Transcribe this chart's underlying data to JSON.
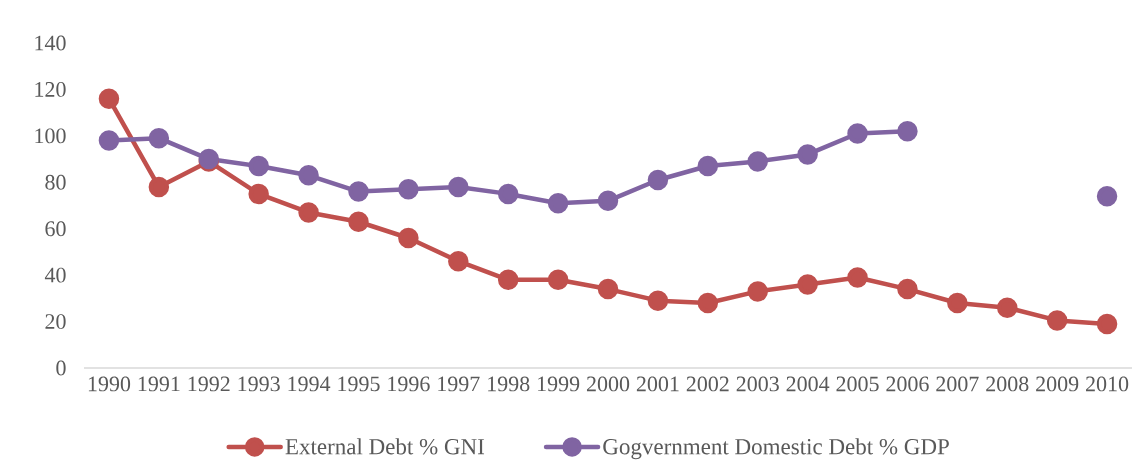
{
  "chart_data": {
    "type": "line",
    "categories": [
      "1990",
      "1991",
      "1992",
      "1993",
      "1994",
      "1995",
      "1996",
      "1997",
      "1998",
      "1999",
      "2000",
      "2001",
      "2002",
      "2003",
      "2004",
      "2005",
      "2006",
      "2007",
      "2008",
      "2009",
      "2010"
    ],
    "series": [
      {
        "name": "External Debt % GNI",
        "color": "#c0504d",
        "values": [
          116,
          78,
          89,
          75,
          67,
          63,
          56,
          46,
          38,
          38,
          34,
          29,
          28,
          33,
          36,
          39,
          34,
          28,
          26,
          20.5,
          19
        ]
      },
      {
        "name": "Gogvernment Domestic Debt % GDP",
        "color": "#8064a2",
        "values": [
          98,
          99,
          90,
          87,
          83,
          76,
          77,
          78,
          75,
          71,
          72,
          81,
          87,
          89,
          92,
          101,
          102,
          null,
          null,
          null,
          74
        ]
      }
    ],
    "ylim": [
      0,
      140
    ],
    "yticks": [
      0,
      20,
      40,
      60,
      80,
      100,
      120,
      140
    ],
    "legend": "bottom",
    "marker": "circle",
    "line_style": "solid"
  }
}
